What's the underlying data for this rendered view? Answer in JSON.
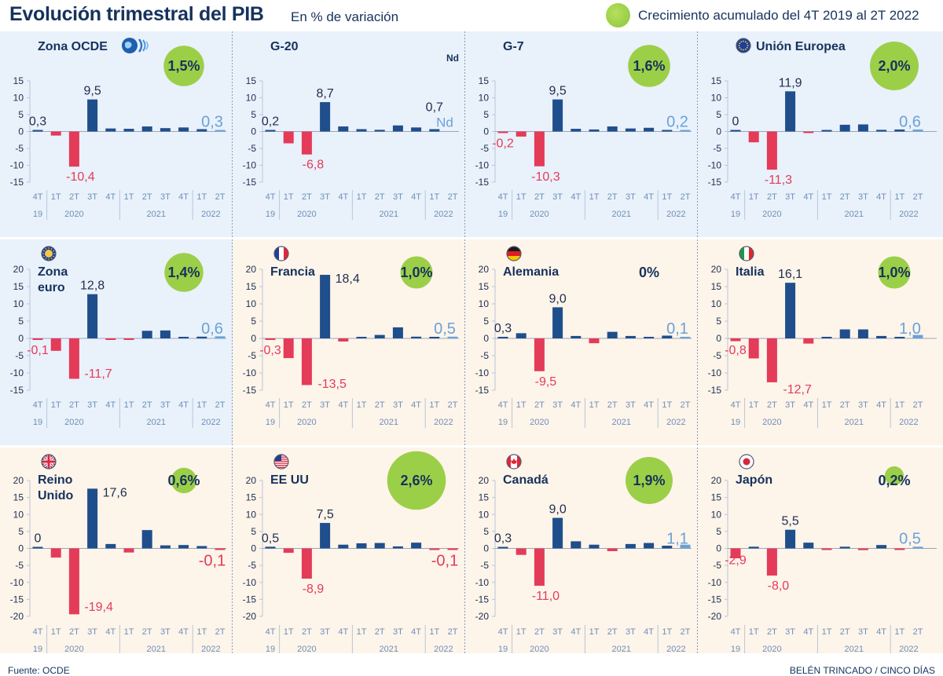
{
  "title": "Evolución trimestral del PIB",
  "subtitle": "En % de variación",
  "legend": "Crecimiento acumulado del 4T 2019 al 2T 2022",
  "source": "Fuente: OCDE",
  "credit": "BELÉN TRINCADO / CINCO DÍAS",
  "colors": {
    "positive": "#1f4e8c",
    "negative": "#e43b58",
    "latest": "#6aa2d8",
    "circle": "#9ccf48",
    "panel_blue": "#e9f1fb",
    "panel_cream": "#fdf4ea",
    "axis_text": "#6f8fb8"
  },
  "x_labels": {
    "quarters": [
      "4T",
      "1T",
      "2T",
      "3T",
      "4T",
      "1T",
      "2T",
      "3T",
      "4T",
      "1T",
      "2T"
    ],
    "years": [
      "19",
      "2020",
      "2021",
      "2022"
    ]
  },
  "chart_data": [
    {
      "type": "bar",
      "country": "Zona OCDE",
      "icon": "oecd-globe-icon",
      "label_lines": [
        "Zona OCDE"
      ],
      "cumulative": "1,5%",
      "ylim": [
        -15,
        15
      ],
      "yticks": [
        15,
        10,
        5,
        0,
        -5,
        -10,
        -15
      ],
      "values": [
        0.3,
        -1.2,
        -10.4,
        9.5,
        0.9,
        0.8,
        1.5,
        1.0,
        1.2,
        0.7,
        0.3
      ],
      "labels": {
        "0": "0,3",
        "2": "-10,4",
        "3": "9,5",
        "10": "0,3"
      },
      "background": "blue"
    },
    {
      "type": "bar",
      "country": "G-20",
      "icon": "",
      "label_lines": [
        "G-20"
      ],
      "cumulative": "Nd",
      "ylim": [
        -15,
        15
      ],
      "yticks": [
        15,
        10,
        5,
        0,
        -5,
        -10,
        -15
      ],
      "values": [
        0.2,
        -3.5,
        -6.8,
        8.7,
        1.5,
        0.7,
        0.5,
        1.8,
        1.2,
        0.7,
        null
      ],
      "labels": {
        "0": "0,2",
        "2": "-6,8",
        "3": "8,7",
        "9": "0,7",
        "10": "Nd"
      },
      "background": "blue"
    },
    {
      "type": "bar",
      "country": "G-7",
      "icon": "",
      "label_lines": [
        "G-7"
      ],
      "cumulative": "1,6%",
      "ylim": [
        -15,
        15
      ],
      "yticks": [
        15,
        10,
        5,
        0,
        -5,
        -10,
        -15
      ],
      "values": [
        -0.2,
        -1.5,
        -10.3,
        9.5,
        0.8,
        0.6,
        1.5,
        0.9,
        1.1,
        0.2,
        0.2
      ],
      "labels": {
        "0": "-0,2",
        "2": "-10,3",
        "3": "9,5",
        "10": "0,2"
      },
      "background": "blue"
    },
    {
      "type": "bar",
      "country": "Unión Europea",
      "icon": "eu-flag-icon",
      "label_lines": [
        "Unión Europea"
      ],
      "cumulative": "2,0%",
      "ylim": [
        -15,
        15
      ],
      "yticks": [
        15,
        10,
        5,
        0,
        -5,
        -10,
        -15
      ],
      "values": [
        0,
        -3.2,
        -11.3,
        11.9,
        -0.3,
        0.1,
        2.0,
        2.1,
        0.5,
        0.6,
        0.6
      ],
      "labels": {
        "0": "0",
        "2": "-11,3",
        "3": "11,9",
        "10": "0,6"
      },
      "background": "blue"
    },
    {
      "type": "bar",
      "country": "Zona euro",
      "icon": "euro-zone-icon",
      "label_lines": [
        "Zona",
        "euro"
      ],
      "cumulative": "1,4%",
      "ylim": [
        -15,
        20
      ],
      "yticks": [
        20,
        15,
        10,
        5,
        0,
        -5,
        -10,
        -15
      ],
      "values": [
        -0.1,
        -3.6,
        -11.7,
        12.8,
        -0.4,
        -0.1,
        2.2,
        2.3,
        0.4,
        0.5,
        0.6
      ],
      "labels": {
        "0": "-0,1",
        "2": "-11,7",
        "3": "12,8",
        "10": "0,6"
      },
      "background": "blue"
    },
    {
      "type": "bar",
      "country": "Francia",
      "icon": "france-flag-icon",
      "label_lines": [
        "Francia"
      ],
      "cumulative": "1,0%",
      "ylim": [
        -15,
        20
      ],
      "yticks": [
        20,
        15,
        10,
        5,
        0,
        -5,
        -10,
        -15
      ],
      "values": [
        -0.3,
        -5.7,
        -13.5,
        18.4,
        -0.9,
        0.0,
        1.0,
        3.2,
        0.5,
        0.0,
        0.5
      ],
      "labels": {
        "0": "-0,3",
        "2": "-13,5",
        "3": "18,4",
        "10": "0,5"
      },
      "background": "cream"
    },
    {
      "type": "bar",
      "country": "Alemania",
      "icon": "germany-flag-icon",
      "label_lines": [
        "Alemania"
      ],
      "cumulative": "0%",
      "ylim": [
        -15,
        20
      ],
      "yticks": [
        20,
        15,
        10,
        5,
        0,
        -5,
        -10,
        -15
      ],
      "values": [
        0.3,
        1.5,
        -9.5,
        9.0,
        0.7,
        -1.4,
        1.9,
        0.7,
        0.0,
        0.8,
        0.1
      ],
      "labels": {
        "0": "0,3",
        "2": "-9,5",
        "3": "9,0",
        "10": "0,1"
      },
      "background": "cream"
    },
    {
      "type": "bar",
      "country": "Italia",
      "icon": "italy-flag-icon",
      "label_lines": [
        "Italia"
      ],
      "cumulative": "1,0%",
      "ylim": [
        -15,
        20
      ],
      "yticks": [
        20,
        15,
        10,
        5,
        0,
        -5,
        -10,
        -15
      ],
      "values": [
        -0.8,
        -5.8,
        -12.7,
        16.1,
        -1.5,
        0.3,
        2.6,
        2.6,
        0.7,
        0.1,
        1.0
      ],
      "labels": {
        "0": "-0,8",
        "2": "-12,7",
        "3": "16,1",
        "10": "1,0"
      },
      "background": "cream"
    },
    {
      "type": "bar",
      "country": "Reino Unido",
      "icon": "uk-flag-icon",
      "label_lines": [
        "Reino",
        "Unido"
      ],
      "cumulative": "0,6%",
      "ylim": [
        -20,
        20
      ],
      "yticks": [
        20,
        15,
        10,
        5,
        0,
        -5,
        -10,
        -15,
        -20
      ],
      "values": [
        0,
        -2.7,
        -19.4,
        17.6,
        1.3,
        -1.2,
        5.4,
        0.9,
        1.0,
        0.7,
        -0.1
      ],
      "labels": {
        "0": "0",
        "2": "-19,4",
        "3": "17,6",
        "10": "-0,1"
      },
      "background": "cream"
    },
    {
      "type": "bar",
      "country": "EE UU",
      "icon": "usa-flag-icon",
      "label_lines": [
        "EE UU"
      ],
      "cumulative": "2,6%",
      "ylim": [
        -20,
        20
      ],
      "yticks": [
        20,
        15,
        10,
        5,
        0,
        -5,
        -10,
        -15,
        -20
      ],
      "values": [
        0.5,
        -1.3,
        -8.9,
        7.5,
        1.1,
        1.5,
        1.6,
        0.6,
        1.7,
        -0.4,
        -0.1
      ],
      "labels": {
        "0": "0,5",
        "2": "-8,9",
        "3": "7,5",
        "10": "-0,1"
      },
      "background": "cream"
    },
    {
      "type": "bar",
      "country": "Canadá",
      "icon": "canada-flag-icon",
      "label_lines": [
        "Canadá"
      ],
      "cumulative": "1,9%",
      "ylim": [
        -20,
        20
      ],
      "yticks": [
        20,
        15,
        10,
        5,
        0,
        -5,
        -10,
        -15,
        -20
      ],
      "values": [
        0.3,
        -1.9,
        -11.0,
        9.0,
        2.1,
        1.1,
        -0.8,
        1.3,
        1.6,
        0.8,
        1.1
      ],
      "labels": {
        "0": "0,3",
        "2": "-11,0",
        "3": "9,0",
        "10": "1,1"
      },
      "background": "cream"
    },
    {
      "type": "bar",
      "country": "Japón",
      "icon": "japan-flag-icon",
      "label_lines": [
        "Japón"
      ],
      "cumulative": "0,2%",
      "ylim": [
        -20,
        20
      ],
      "yticks": [
        20,
        15,
        10,
        5,
        0,
        -5,
        -10,
        -15,
        -20
      ],
      "values": [
        -2.9,
        0.5,
        -8.0,
        5.5,
        1.7,
        -0.4,
        0.5,
        -0.5,
        1.0,
        -0.1,
        0.5
      ],
      "labels": {
        "0": "-2,9",
        "2": "-8,0",
        "3": "5,5",
        "10": "0,5"
      },
      "background": "cream"
    }
  ]
}
